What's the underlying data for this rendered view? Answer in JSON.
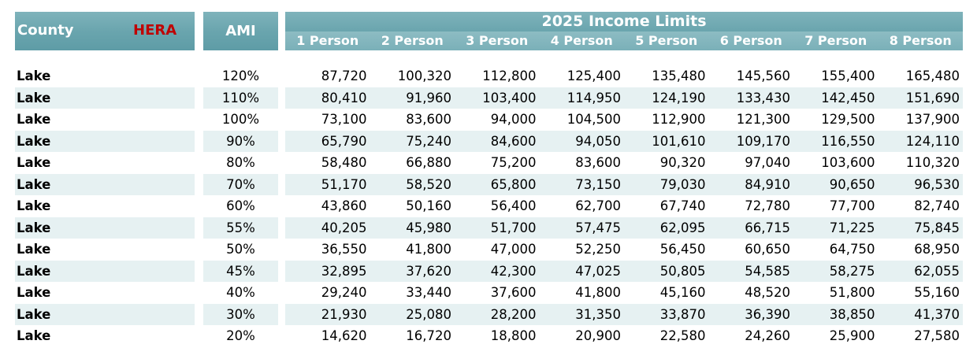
{
  "header": {
    "county_label": "County",
    "hera_label": "HERA",
    "ami_label": "AMI",
    "income_title": "2025 Income Limits",
    "person_columns": [
      "1 Person",
      "2 Person",
      "3 Person",
      "4 Person",
      "5 Person",
      "6 Person",
      "7 Person",
      "8 Person"
    ]
  },
  "colors": {
    "header_teal": "#6aa5ae",
    "subheader_teal": "#7ab0b8",
    "band_light": "#e6f1f2",
    "hera_red": "#c00000"
  },
  "rows": [
    {
      "county": "Lake",
      "ami": "120%",
      "values": [
        "87,720",
        "100,320",
        "112,800",
        "125,400",
        "135,480",
        "145,560",
        "155,400",
        "165,480"
      ]
    },
    {
      "county": "Lake",
      "ami": "110%",
      "values": [
        "80,410",
        "91,960",
        "103,400",
        "114,950",
        "124,190",
        "133,430",
        "142,450",
        "151,690"
      ]
    },
    {
      "county": "Lake",
      "ami": "100%",
      "values": [
        "73,100",
        "83,600",
        "94,000",
        "104,500",
        "112,900",
        "121,300",
        "129,500",
        "137,900"
      ]
    },
    {
      "county": "Lake",
      "ami": "90%",
      "values": [
        "65,790",
        "75,240",
        "84,600",
        "94,050",
        "101,610",
        "109,170",
        "116,550",
        "124,110"
      ]
    },
    {
      "county": "Lake",
      "ami": "80%",
      "values": [
        "58,480",
        "66,880",
        "75,200",
        "83,600",
        "90,320",
        "97,040",
        "103,600",
        "110,320"
      ]
    },
    {
      "county": "Lake",
      "ami": "70%",
      "values": [
        "51,170",
        "58,520",
        "65,800",
        "73,150",
        "79,030",
        "84,910",
        "90,650",
        "96,530"
      ]
    },
    {
      "county": "Lake",
      "ami": "60%",
      "values": [
        "43,860",
        "50,160",
        "56,400",
        "62,700",
        "67,740",
        "72,780",
        "77,700",
        "82,740"
      ]
    },
    {
      "county": "Lake",
      "ami": "55%",
      "values": [
        "40,205",
        "45,980",
        "51,700",
        "57,475",
        "62,095",
        "66,715",
        "71,225",
        "75,845"
      ]
    },
    {
      "county": "Lake",
      "ami": "50%",
      "values": [
        "36,550",
        "41,800",
        "47,000",
        "52,250",
        "56,450",
        "60,650",
        "64,750",
        "68,950"
      ]
    },
    {
      "county": "Lake",
      "ami": "45%",
      "values": [
        "32,895",
        "37,620",
        "42,300",
        "47,025",
        "50,805",
        "54,585",
        "58,275",
        "62,055"
      ]
    },
    {
      "county": "Lake",
      "ami": "40%",
      "values": [
        "29,240",
        "33,440",
        "37,600",
        "41,800",
        "45,160",
        "48,520",
        "51,800",
        "55,160"
      ]
    },
    {
      "county": "Lake",
      "ami": "30%",
      "values": [
        "21,930",
        "25,080",
        "28,200",
        "31,350",
        "33,870",
        "36,390",
        "38,850",
        "41,370"
      ]
    },
    {
      "county": "Lake",
      "ami": "20%",
      "values": [
        "14,620",
        "16,720",
        "18,800",
        "20,900",
        "22,580",
        "24,260",
        "25,900",
        "27,580"
      ]
    }
  ]
}
